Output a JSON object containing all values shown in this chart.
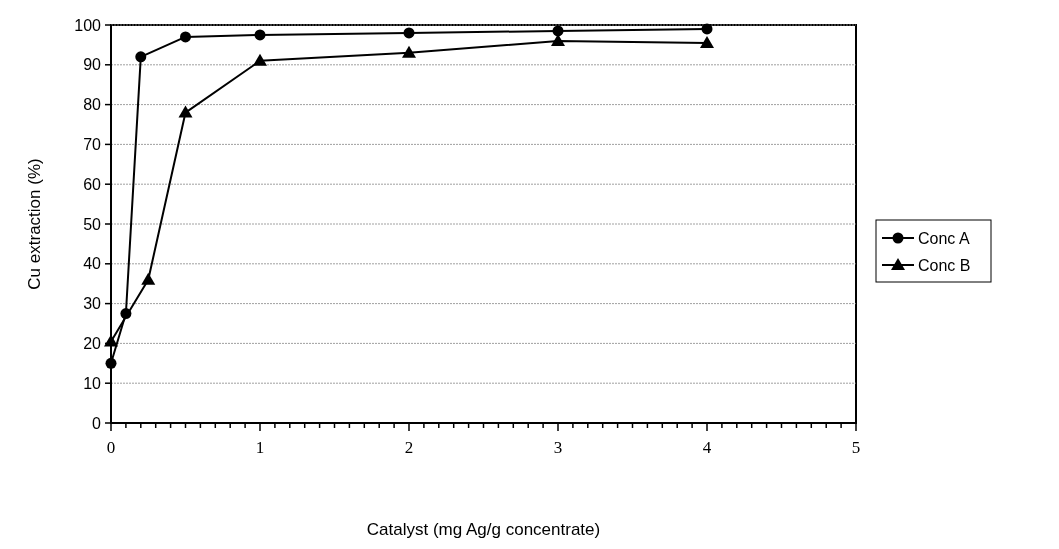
{
  "chart_data": {
    "type": "line",
    "xlabel": "Catalyst (mg Ag/g concentrate)",
    "ylabel": "Cu extraction (%)",
    "xlim": [
      0,
      5
    ],
    "xticks": [
      0,
      1,
      2,
      3,
      4,
      5
    ],
    "ylim": [
      0,
      100
    ],
    "yticks": [
      0,
      10,
      20,
      30,
      40,
      50,
      60,
      70,
      80,
      90,
      100
    ],
    "grid": "y",
    "legend": "right",
    "series": [
      {
        "name": "Conc A",
        "color": "#000000",
        "marker": "circle",
        "x": [
          0,
          0.1,
          0.2,
          0.5,
          1,
          2,
          3,
          4
        ],
        "values": [
          15,
          27.5,
          92,
          97,
          97.5,
          98,
          98.5,
          99
        ]
      },
      {
        "name": "Conc B",
        "color": "#000000",
        "marker": "triangle",
        "x": [
          0,
          0.25,
          0.5,
          1,
          2,
          3,
          4
        ],
        "values": [
          20.5,
          36,
          78,
          91,
          93,
          96,
          95.5
        ]
      }
    ]
  }
}
